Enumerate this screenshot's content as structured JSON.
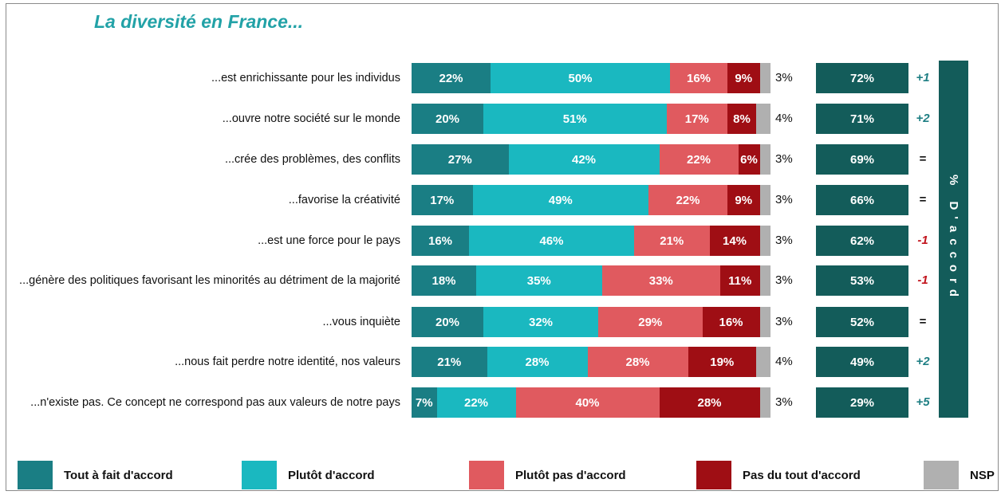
{
  "colors": {
    "tout_a_fait": "#1a7e84",
    "plutot": "#1ab8c0",
    "plutot_pas": "#e05a5f",
    "pas_du_tout": "#9f0e14",
    "nsp": "#b0b0b0",
    "total": "#135c5a",
    "evo_positive": "#1f7f84",
    "evo_negative": "#c1121b",
    "evo_neutral": "#111111"
  },
  "chart_data": {
    "type": "bar",
    "orientation": "horizontal",
    "stacked": true,
    "percent_scale": true,
    "title": "La diversité en France...",
    "categories": [
      "...est enrichissante pour les individus",
      "...ouvre notre société sur le monde",
      "...crée des problèmes, des conflits",
      "...favorise la créativité",
      "...est une force pour le pays",
      "...génère des politiques favorisant les minorités au détriment de la majorité",
      "...vous inquiète",
      "...nous fait perdre notre identité, nos valeurs",
      "...n'existe pas. Ce concept ne correspond pas aux valeurs de notre pays"
    ],
    "series": [
      {
        "name": "Tout à fait d'accord",
        "color_key": "tout_a_fait",
        "values": [
          22,
          20,
          27,
          17,
          16,
          18,
          20,
          21,
          7
        ]
      },
      {
        "name": "Plutôt d'accord",
        "color_key": "plutot",
        "values": [
          50,
          51,
          42,
          49,
          46,
          35,
          32,
          28,
          22
        ]
      },
      {
        "name": "Plutôt pas d'accord",
        "color_key": "plutot_pas",
        "values": [
          16,
          17,
          22,
          22,
          21,
          33,
          29,
          28,
          40
        ]
      },
      {
        "name": "Pas du tout d'accord",
        "color_key": "pas_du_tout",
        "values": [
          9,
          8,
          6,
          9,
          14,
          11,
          16,
          19,
          28
        ]
      },
      {
        "name": "NSP",
        "color_key": "nsp",
        "values": [
          3,
          4,
          3,
          3,
          3,
          3,
          3,
          4,
          3
        ]
      }
    ],
    "totals": {
      "label": "% D'accord",
      "values": [
        72,
        71,
        69,
        66,
        62,
        53,
        52,
        49,
        29
      ]
    },
    "evolutions": [
      "+1",
      "+2",
      "=",
      "=",
      "-1",
      "-1",
      "=",
      "+2",
      "+5"
    ],
    "legend": "bottom"
  }
}
